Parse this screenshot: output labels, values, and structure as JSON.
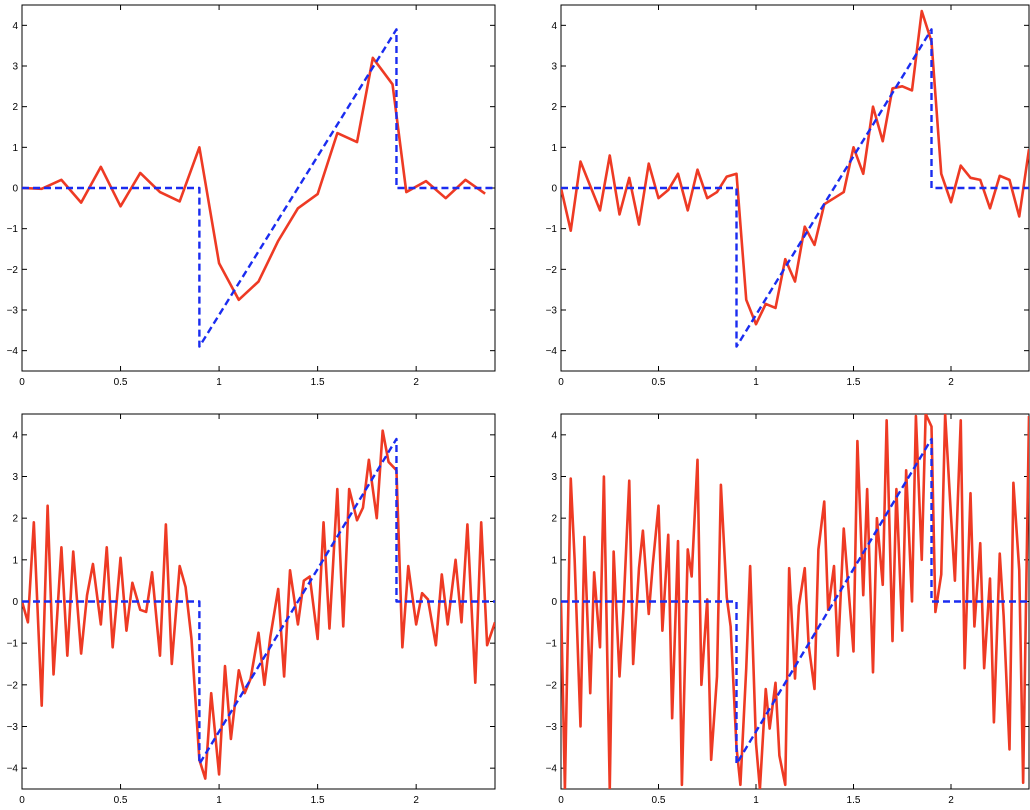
{
  "chart_data": [
    {
      "type": "line",
      "panel": "top-left",
      "xlim": [
        0,
        2.4
      ],
      "ylim": [
        -4.5,
        4.5
      ],
      "x_ticks": [
        0,
        0.5,
        1,
        1.5,
        2
      ],
      "x_tick_labels": [
        "0",
        "0.5",
        "1",
        "1.5",
        "2"
      ],
      "y_ticks": [
        -4,
        -3,
        -2,
        -1,
        0,
        1,
        2,
        3,
        4
      ],
      "y_tick_labels": [
        "−4",
        "−3",
        "−2",
        "−1",
        "0",
        "1",
        "2",
        "3",
        "4"
      ],
      "grid": false,
      "series": [
        {
          "style": "dashed",
          "color": "#1a2cf0",
          "x": [
            0,
            0.9,
            0.9,
            1.9,
            1.9,
            2.4
          ],
          "y": [
            0,
            0,
            -3.9,
            3.9,
            0,
            0
          ]
        },
        {
          "style": "solid",
          "color": "#ee3a24",
          "x": [
            0,
            0.1,
            0.2,
            0.3,
            0.4,
            0.5,
            0.6,
            0.7,
            0.8,
            0.9,
            1.0,
            1.1,
            1.2,
            1.3,
            1.4,
            1.5,
            1.6,
            1.7,
            1.78,
            1.88,
            1.95,
            2.05,
            2.15,
            2.25,
            2.35
          ],
          "y": [
            0,
            -0.02,
            0.2,
            -0.36,
            0.52,
            -0.45,
            0.37,
            -0.1,
            -0.33,
            1.0,
            -1.85,
            -2.75,
            -2.3,
            -1.3,
            -0.5,
            -0.15,
            1.35,
            1.13,
            3.2,
            2.55,
            -0.1,
            0.17,
            -0.25,
            0.2,
            -0.14
          ]
        }
      ]
    },
    {
      "type": "line",
      "panel": "top-right",
      "xlim": [
        0,
        2.4
      ],
      "ylim": [
        -4.5,
        4.5
      ],
      "x_ticks": [
        0,
        0.5,
        1,
        1.5,
        2
      ],
      "x_tick_labels": [
        "0",
        "0.5",
        "1",
        "1.5",
        "2"
      ],
      "y_ticks": [
        -4,
        -3,
        -2,
        -1,
        0,
        1,
        2,
        3,
        4
      ],
      "y_tick_labels": [
        "−4",
        "−3",
        "−2",
        "−1",
        "0",
        "1",
        "2",
        "3",
        "4"
      ],
      "grid": false,
      "series": [
        {
          "style": "dashed",
          "color": "#1a2cf0",
          "x": [
            0,
            0.9,
            0.9,
            1.9,
            1.9,
            2.4
          ],
          "y": [
            0,
            0,
            -3.9,
            3.9,
            0,
            0
          ]
        },
        {
          "style": "solid",
          "color": "#ee3a24",
          "x": [
            0,
            0.05,
            0.1,
            0.15,
            0.2,
            0.25,
            0.3,
            0.35,
            0.4,
            0.45,
            0.5,
            0.55,
            0.6,
            0.65,
            0.7,
            0.75,
            0.8,
            0.85,
            0.9,
            0.95,
            1.0,
            1.05,
            1.1,
            1.15,
            1.2,
            1.25,
            1.3,
            1.35,
            1.4,
            1.45,
            1.5,
            1.55,
            1.6,
            1.65,
            1.7,
            1.75,
            1.8,
            1.85,
            1.9,
            1.95,
            2.0,
            2.05,
            2.1,
            2.15,
            2.2,
            2.25,
            2.3,
            2.35,
            2.4
          ],
          "y": [
            0,
            -1.05,
            0.65,
            0.05,
            -0.55,
            0.8,
            -0.65,
            0.25,
            -0.9,
            0.6,
            -0.25,
            -0.05,
            0.35,
            -0.55,
            0.45,
            -0.25,
            -0.1,
            0.28,
            0.35,
            -2.75,
            -3.35,
            -2.85,
            -2.95,
            -1.75,
            -2.3,
            -0.95,
            -1.4,
            -0.4,
            -0.25,
            -0.1,
            1.0,
            0.35,
            2.0,
            1.15,
            2.45,
            2.5,
            2.4,
            4.35,
            3.6,
            0.35,
            -0.35,
            0.55,
            0.25,
            0.2,
            -0.5,
            0.3,
            0.2,
            -0.7,
            0.95
          ]
        }
      ]
    },
    {
      "type": "line",
      "panel": "bottom-left",
      "xlim": [
        0,
        2.4
      ],
      "ylim": [
        -4.5,
        4.5
      ],
      "x_ticks": [
        0,
        0.5,
        1,
        1.5,
        2
      ],
      "x_tick_labels": [
        "0",
        "0.5",
        "1",
        "1.5",
        "2"
      ],
      "y_ticks": [
        -4,
        -3,
        -2,
        -1,
        0,
        1,
        2,
        3,
        4
      ],
      "y_tick_labels": [
        "−4",
        "−3",
        "−2",
        "−1",
        "0",
        "1",
        "2",
        "3",
        "4"
      ],
      "grid": false,
      "series": [
        {
          "style": "dashed",
          "color": "#1a2cf0",
          "x": [
            0,
            0.9,
            0.9,
            1.9,
            1.9,
            2.4
          ],
          "y": [
            0,
            0,
            -3.9,
            3.9,
            0,
            0
          ]
        },
        {
          "style": "solid",
          "color": "#ee3a24",
          "x": [
            0,
            0.03,
            0.06,
            0.1,
            0.13,
            0.16,
            0.2,
            0.23,
            0.26,
            0.3,
            0.33,
            0.36,
            0.4,
            0.43,
            0.46,
            0.5,
            0.53,
            0.56,
            0.6,
            0.63,
            0.66,
            0.7,
            0.73,
            0.76,
            0.8,
            0.83,
            0.86,
            0.9,
            0.93,
            0.96,
            1.0,
            1.03,
            1.06,
            1.1,
            1.13,
            1.16,
            1.2,
            1.23,
            1.26,
            1.3,
            1.33,
            1.36,
            1.4,
            1.43,
            1.46,
            1.5,
            1.53,
            1.56,
            1.6,
            1.63,
            1.66,
            1.7,
            1.73,
            1.76,
            1.8,
            1.83,
            1.86,
            1.9,
            1.93,
            1.96,
            2.0,
            2.03,
            2.06,
            2.1,
            2.13,
            2.16,
            2.2,
            2.23,
            2.26,
            2.3,
            2.33,
            2.36,
            2.4
          ],
          "y": [
            0,
            -0.5,
            1.9,
            -2.5,
            2.3,
            -1.75,
            1.3,
            -1.3,
            1.2,
            -1.25,
            0.15,
            0.9,
            -0.55,
            1.3,
            -1.1,
            1.05,
            -0.7,
            0.45,
            -0.2,
            -0.25,
            0.7,
            -1.3,
            1.85,
            -1.5,
            0.85,
            0.35,
            -0.9,
            -3.8,
            -4.25,
            -2.2,
            -4.15,
            -1.55,
            -3.3,
            -1.65,
            -2.2,
            -1.85,
            -0.75,
            -2.0,
            -0.85,
            0.3,
            -1.8,
            0.75,
            -0.55,
            0.5,
            0.6,
            -0.9,
            1.9,
            -0.65,
            2.7,
            -0.6,
            2.7,
            1.95,
            2.25,
            3.4,
            2.0,
            4.1,
            3.35,
            3.15,
            -1.1,
            0.85,
            -0.55,
            0.2,
            0.05,
            -1.05,
            0.65,
            -0.55,
            1.0,
            -0.5,
            1.85,
            -1.95,
            1.9,
            -1.05,
            -0.5
          ]
        }
      ]
    },
    {
      "type": "line",
      "panel": "bottom-right",
      "xlim": [
        0,
        2.4
      ],
      "ylim": [
        -4.5,
        4.5
      ],
      "x_ticks": [
        0,
        0.5,
        1,
        1.5,
        2
      ],
      "x_tick_labels": [
        "0",
        "0.5",
        "1",
        "1.5",
        "2"
      ],
      "y_ticks": [
        -4,
        -3,
        -2,
        -1,
        0,
        1,
        2,
        3,
        4
      ],
      "y_tick_labels": [
        "−4",
        "−3",
        "−2",
        "−1",
        "0",
        "1",
        "2",
        "3",
        "4"
      ],
      "grid": false,
      "series": [
        {
          "style": "dashed",
          "color": "#1a2cf0",
          "x": [
            0,
            0.9,
            0.9,
            1.9,
            1.9,
            2.4
          ],
          "y": [
            0,
            0,
            -3.9,
            3.9,
            0,
            0
          ]
        },
        {
          "style": "solid",
          "color": "#ee3a24",
          "x": [
            0,
            0.02,
            0.05,
            0.07,
            0.1,
            0.12,
            0.15,
            0.17,
            0.2,
            0.22,
            0.25,
            0.27,
            0.3,
            0.32,
            0.35,
            0.37,
            0.4,
            0.42,
            0.45,
            0.47,
            0.5,
            0.52,
            0.55,
            0.57,
            0.6,
            0.62,
            0.65,
            0.67,
            0.7,
            0.72,
            0.75,
            0.77,
            0.8,
            0.82,
            0.85,
            0.87,
            0.9,
            0.92,
            0.95,
            0.97,
            1.0,
            1.02,
            1.05,
            1.07,
            1.1,
            1.12,
            1.15,
            1.17,
            1.2,
            1.22,
            1.25,
            1.27,
            1.3,
            1.32,
            1.35,
            1.37,
            1.4,
            1.42,
            1.45,
            1.47,
            1.5,
            1.52,
            1.55,
            1.57,
            1.6,
            1.62,
            1.65,
            1.67,
            1.7,
            1.72,
            1.75,
            1.77,
            1.8,
            1.82,
            1.85,
            1.87,
            1.9,
            1.92,
            1.95,
            1.97,
            2.0,
            2.02,
            2.05,
            2.07,
            2.1,
            2.12,
            2.15,
            2.17,
            2.2,
            2.22,
            2.25,
            2.27,
            2.3,
            2.32,
            2.35,
            2.37,
            2.4
          ],
          "y": [
            0,
            -4.5,
            2.95,
            1.0,
            -3.0,
            1.55,
            -2.2,
            0.7,
            -1.1,
            3.0,
            -4.5,
            1.2,
            -1.8,
            -0.2,
            2.9,
            -1.5,
            0.8,
            1.7,
            -0.3,
            0.85,
            2.3,
            -0.7,
            1.6,
            -2.8,
            1.45,
            -4.4,
            1.25,
            0.6,
            3.4,
            -2.0,
            0.05,
            -3.8,
            -1.8,
            2.8,
            0.1,
            -0.6,
            -3.5,
            -4.4,
            -1.6,
            0.85,
            -3.4,
            -4.5,
            -2.1,
            -3.05,
            -1.95,
            -3.7,
            -4.4,
            0.8,
            -1.85,
            -0.1,
            0.8,
            -1.05,
            -2.1,
            1.25,
            2.4,
            -0.2,
            0.85,
            -1.3,
            1.75,
            0.55,
            -1.2,
            3.85,
            0.15,
            2.7,
            -1.7,
            2.0,
            0.4,
            4.35,
            -0.95,
            2.7,
            -0.7,
            3.15,
            0.0,
            4.45,
            1.0,
            4.5,
            4.2,
            -0.25,
            0.65,
            4.5,
            2.05,
            0.5,
            4.35,
            -1.6,
            2.6,
            -0.6,
            1.4,
            -1.6,
            0.55,
            -2.9,
            1.15,
            -0.35,
            -3.55,
            2.85,
            0.75,
            -4.35,
            4.45
          ]
        }
      ]
    }
  ]
}
